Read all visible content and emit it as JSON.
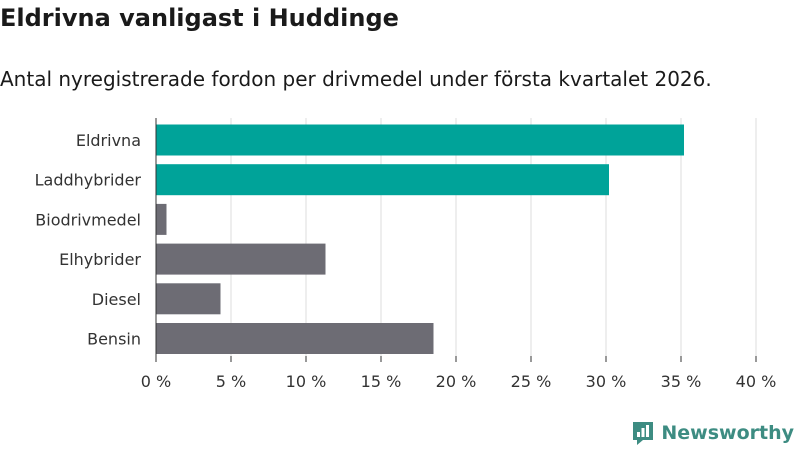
{
  "header": {
    "title": "Eldrivna vanligast i Huddinge",
    "subtitle": "Antal nyregistrerade fordon per drivmedel under första kvartalet 2026."
  },
  "brand": {
    "name": "Newsworthy",
    "logo_icon": "bar-chart-logo-icon",
    "color": "#3d8c82"
  },
  "colors": {
    "highlight": "#00a399",
    "other": "#6d6c74",
    "grid": "#dddddd"
  },
  "chart_data": {
    "type": "bar",
    "orientation": "horizontal",
    "categories": [
      "Eldrivna",
      "Laddhybrider",
      "Biodrivmedel",
      "Elhybrider",
      "Diesel",
      "Bensin"
    ],
    "values": [
      35.2,
      30.2,
      0.7,
      11.3,
      4.3,
      18.5
    ],
    "highlighted": [
      true,
      true,
      false,
      false,
      false,
      false
    ],
    "xlim": [
      0,
      40
    ],
    "xticks": [
      0,
      5,
      10,
      15,
      20,
      25,
      30,
      35,
      40
    ],
    "tick_labels": [
      "0 %",
      "5 %",
      "10 %",
      "15 %",
      "20 %",
      "25 %",
      "30 %",
      "35 %",
      "40 %"
    ],
    "grid": "vertical",
    "legend": "none",
    "xlabel": "",
    "ylabel": ""
  }
}
